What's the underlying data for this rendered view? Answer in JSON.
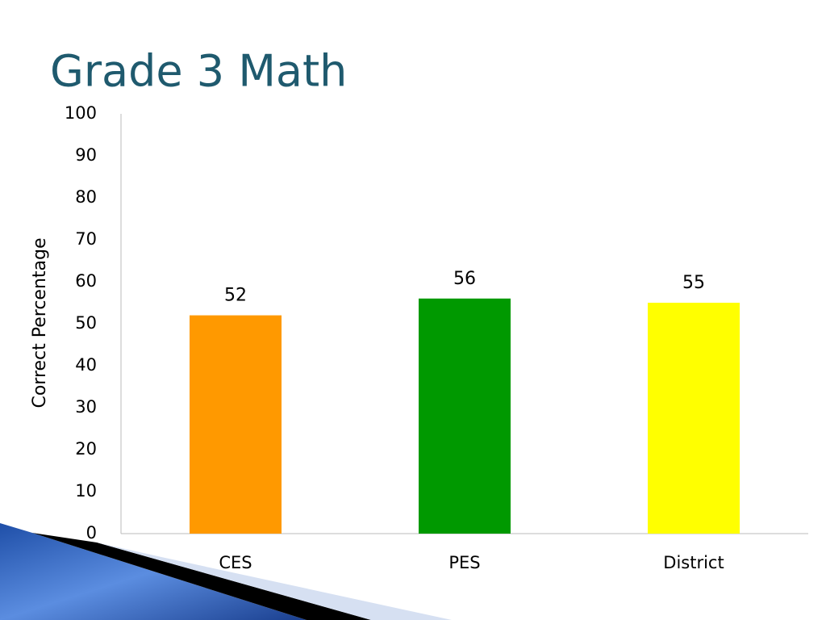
{
  "chart_data": {
    "type": "bar",
    "title": "Grade 3 Math",
    "y_label": "Correct Percentage",
    "categories": [
      "CES",
      "PES",
      "District"
    ],
    "values": [
      52,
      56,
      55
    ],
    "colors": [
      "#ff9900",
      "#009900",
      "#ffff00"
    ],
    "ylim": [
      0,
      100
    ],
    "yticks": [
      0,
      10,
      20,
      30,
      40,
      50,
      60,
      70,
      80,
      90,
      100
    ],
    "grid": false
  }
}
